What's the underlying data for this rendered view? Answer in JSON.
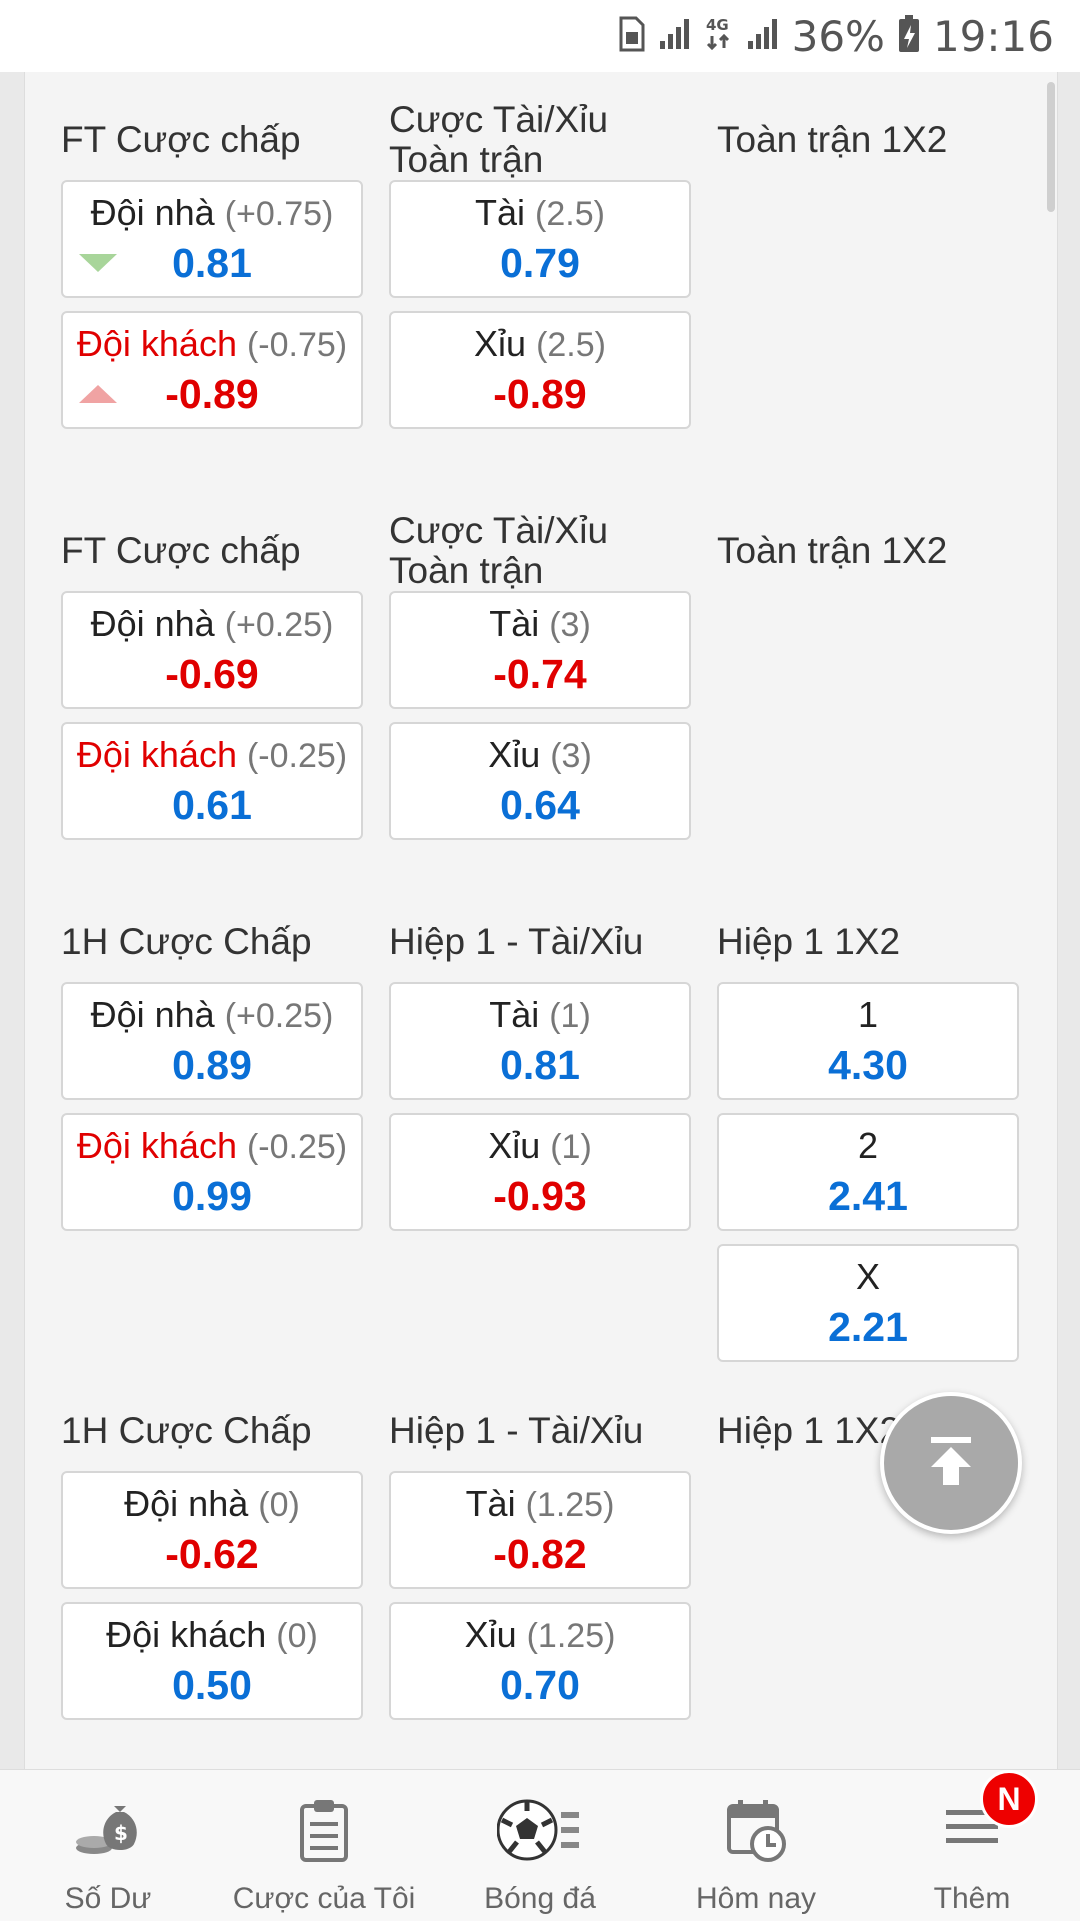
{
  "status_bar": {
    "icons": [
      "sim-card-icon",
      "signal-icon",
      "4g-icon",
      "signal-icon",
      "battery-charging-icon"
    ],
    "network_type": "4G",
    "battery_percent": "36%",
    "time": "19:16"
  },
  "sections": [
    {
      "columns": [
        {
          "title": "FT Cược chấp",
          "boxes": [
            {
              "team": "Đội nhà",
              "handicap": "(+0.75)",
              "value": "0.81",
              "trend": "down"
            },
            {
              "team": "Đội khách",
              "handicap": "(-0.75)",
              "value": "-0.89",
              "trend": "up"
            }
          ]
        },
        {
          "title": "Cược Tài/Xỉu\nToàn trận",
          "boxes": [
            {
              "team": "Tài",
              "handicap": "(2.5)",
              "value": "0.79"
            },
            {
              "team": "Xỉu",
              "handicap": "(2.5)",
              "value": "-0.89"
            }
          ]
        },
        {
          "title": "Toàn trận 1X2",
          "boxes": []
        }
      ]
    },
    {
      "columns": [
        {
          "title": "FT Cược chấp",
          "boxes": [
            {
              "team": "Đội nhà",
              "handicap": "(+0.25)",
              "value": "-0.69"
            },
            {
              "team": "Đội khách",
              "handicap": "(-0.25)",
              "value": "0.61"
            }
          ]
        },
        {
          "title": "Cược Tài/Xỉu\nToàn trận",
          "boxes": [
            {
              "team": "Tài",
              "handicap": "(3)",
              "value": "-0.74"
            },
            {
              "team": "Xỉu",
              "handicap": "(3)",
              "value": "0.64"
            }
          ]
        },
        {
          "title": "Toàn trận 1X2",
          "boxes": []
        }
      ]
    },
    {
      "columns": [
        {
          "title": "1H Cược Chấp",
          "boxes": [
            {
              "team": "Đội nhà",
              "handicap": "(+0.25)",
              "value": "0.89"
            },
            {
              "team": "Đội khách",
              "handicap": "(-0.25)",
              "value": "0.99"
            }
          ]
        },
        {
          "title": "Hiệp 1 - Tài/Xỉu",
          "boxes": [
            {
              "team": "Tài",
              "handicap": "(1)",
              "value": "0.81"
            },
            {
              "team": "Xỉu",
              "handicap": "(1)",
              "value": "-0.93"
            }
          ]
        },
        {
          "title": "Hiệp 1 1X2",
          "boxes": [
            {
              "team": "1",
              "handicap": "",
              "value": "4.30"
            },
            {
              "team": "2",
              "handicap": "",
              "value": "2.41"
            },
            {
              "team": "X",
              "handicap": "",
              "value": "2.21"
            }
          ]
        }
      ]
    },
    {
      "columns": [
        {
          "title": "1H Cược Chấp",
          "boxes": [
            {
              "team": "Đội nhà",
              "handicap": "(0)",
              "value": "-0.62"
            },
            {
              "team": "Đội khách",
              "handicap": "(0)",
              "value": "0.50"
            }
          ]
        },
        {
          "title": "Hiệp 1 - Tài/Xỉu",
          "boxes": [
            {
              "team": "Tài",
              "handicap": "(1.25)",
              "value": "-0.82"
            },
            {
              "team": "Xỉu",
              "handicap": "(1.25)",
              "value": "0.70"
            }
          ]
        },
        {
          "title": "Hiệp 1 1X2",
          "boxes": []
        }
      ]
    }
  ],
  "back_to_top_icon": "arrow-up-to-line-icon",
  "bottom_nav": {
    "items": [
      {
        "label": "Số Dư",
        "icon": "money-bag-icon"
      },
      {
        "label": "Cược của Tôi",
        "icon": "clipboard-icon"
      },
      {
        "label": "Bóng đá",
        "icon": "soccer-ball-icon"
      },
      {
        "label": "Hôm nay",
        "icon": "calendar-clock-icon"
      },
      {
        "label": "Thêm",
        "icon": "menu-icon"
      }
    ],
    "badge": "N"
  },
  "colors": {
    "positive_odds": "#0a6fd6",
    "negative_odds": "#e00000",
    "away_team": "#e00000",
    "badge": "#ee0000"
  }
}
